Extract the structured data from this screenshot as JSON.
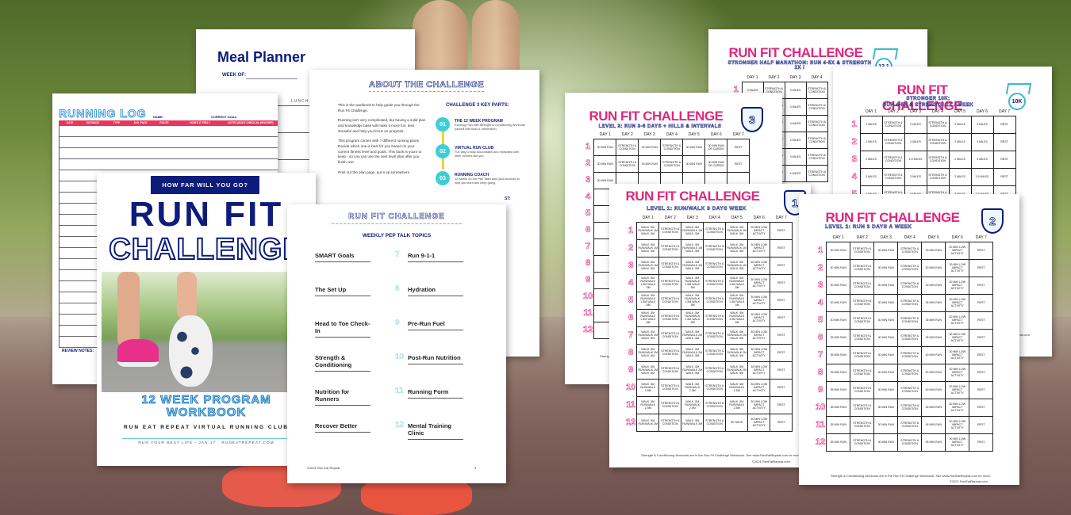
{
  "meal_planner": {
    "title": "Meal Planner",
    "week_of": "WEEK OF:",
    "lunch": "LUNCH"
  },
  "running_log": {
    "title": "RUNNING LOG",
    "name": "NAME:",
    "current_goal": "CURRENT GOAL:",
    "columns": [
      "DATE",
      "DISTANCE",
      "TYPE",
      "AVG. PACE",
      "ROUTE",
      "HOW'D IT FEEL?",
      "NOTES (BODY CHECK-IN, WEATHER)"
    ],
    "review": "REVIEW NOTES:",
    "accent": "#e8365f"
  },
  "cover": {
    "tag": "HOW FAR WILL YOU GO?",
    "title1": "RUN FIT",
    "title2": "CHALLENGE",
    "program": "12 WEEK PROGRAM",
    "workbook": "WORKBOOK",
    "club": "RUN EAT REPEAT VIRTUAL RUNNING CLUB",
    "footer": "RUN YOUR BEST LIFE · JAN 17 · RUNEATREPEAT.COM",
    "navy": "#0d1c7a",
    "cyan": "#3aa9e0"
  },
  "about": {
    "title": "ABOUT THE CHALLENGE",
    "paragraphs": [
      "This is the workbook to help guide you through the Run Fit Challenge.",
      "Running isn't very complicated, but having a solid plan and knowledge base will make it more fun, less stressful and help you focus on progress.",
      "This program comes with 7 different running plans. Decide which one is best for you based on your current fitness level and goals. This book is yours to keep - so you can use the next level plan after you finish one.",
      "Print out the plan page, put it up somewhere"
    ],
    "parts_title": "CHALLENGE 3 KEY PARTS:",
    "parts": [
      {
        "num": "01",
        "title": "THE 12 WEEK PROGRAM",
        "text": "Running Plan with Strength & Conditioning Workouts packed with tools & information."
      },
      {
        "num": "02",
        "title": "VIRTUAL RUN CLUB",
        "text": "Fun way to stay accountable and motivated with other runners like you."
      },
      {
        "num": "03",
        "title": "RUNNING COACH",
        "text": "12 weeks of Live Pep Talks and Q&A sessions to help you learn and keep going."
      }
    ],
    "partial": "ST:"
  },
  "pep": {
    "title": "RUN FIT CHALLENGE",
    "subtitle": "WEEKLY PEP TALK TOPICS",
    "left": [
      "SMART Goals",
      "The Set Up",
      "Head to Toe Check-In",
      "Strength & Conditioning",
      "Nutrition for Runners",
      "Recover Better"
    ],
    "right": [
      {
        "n": "7",
        "t": "Run 9-1-1"
      },
      {
        "n": "8",
        "t": "Hydration"
      },
      {
        "n": "9",
        "t": "Pre-Run Fuel"
      },
      {
        "n": "10",
        "t": "Post-Run Nutrition"
      },
      {
        "n": "11",
        "t": "Running Form"
      },
      {
        "n": "12",
        "t": "Mental Training Clinic"
      }
    ],
    "footer": "©2021 Run Eat Repeat",
    "page": "3"
  },
  "days": [
    "DAY 1",
    "DAY 2",
    "DAY 3",
    "DAY 4",
    "DAY 5",
    "DAY 6",
    "DAY 7"
  ],
  "half": {
    "title": "RUN FIT CHALLENGE",
    "subtitle": "STRONGER HALF MARATHON: RUN 4-5X & STRENGTH 2X /",
    "badge": "13.1",
    "rows": [
      [
        "3 MILES",
        "STRENGTH & CONDITION",
        "3 MILES",
        "STRENGTH & CONDITION"
      ],
      [
        "3 MILES",
        "STRENGTH & CONDITION",
        "3 MILES",
        "STRENGTH & CONDITION"
      ],
      [
        "3 MILES",
        "STRENGTH & CONDITION",
        "3 MILES",
        "STRENGTH & CONDITION"
      ],
      [
        "3 MILES",
        "STRENGTH & CONDITION",
        "4 MILES",
        "STRENGTH & CONDITION"
      ],
      [
        "3 MILES",
        "STRENGTH & CONDITION",
        "3 MILES",
        "STRENGTH & CONDITION"
      ],
      [
        "3 MILES",
        "STRENGTH & CONDITION",
        "4 MILES",
        "STRENGTH & CONDITION"
      ]
    ]
  },
  "tenk": {
    "title": "RUN FIT CHALLENGE",
    "subtitle1": "STRONGER 10K:",
    "subtitle2": "RUN 4-5X & STRENGTH 2X / WEEK",
    "badge": "10K",
    "rows": [
      [
        "2 MILES",
        "STRENGTH & CONDITION",
        "2 MILES",
        "STRENGTH & CONDITION",
        "2 MILES",
        "3 MILES",
        "REST"
      ],
      [
        "2 MILES",
        "STRENGTH & CONDITION",
        "2 MILES",
        "STRENGTH & CONDITION",
        "2 MILES",
        "3 MILES",
        "REST"
      ],
      [
        "2 MILES",
        "STRENGTH & CONDITION",
        "2.5 MILES",
        "STRENGTH & CONDITION",
        "2 MILES",
        "3 MILES",
        "REST"
      ],
      [
        "2 MILES",
        "STRENGTH & CONDITION",
        "3 MILES",
        "STRENGTH & CONDITION",
        "2 MILES",
        "3.5 MILES",
        "REST"
      ],
      [
        "2 MILES",
        "STRENGTH & CONDITION",
        "3 MILES",
        "STRENGTH & CONDITION",
        "3 MILES",
        "3.5 MILES",
        "REST"
      ]
    ],
    "footer": "©2021 RunEatRepeat.com"
  },
  "level3": {
    "title": "RUN FIT CHALLENGE",
    "subtitle": "LEVEL 3: RUN 3-6 DAYS + HILLS & INTERVALS",
    "badge": "3",
    "rows": [
      [
        "30 MIN RUN",
        "STRENGTH & CONDITION",
        "30 MIN RUN",
        "STRENGTH & CONDITION",
        "30 MIN RUN",
        "30 MIN RUN OR CARDIO",
        "REST"
      ],
      [
        "30 MIN RUN",
        "STRENGTH & CONDITION",
        "30 MIN RUN",
        "STRENGTH & CONDITION",
        "30 MIN RUN",
        "30 MIN RUN OR CARDIO",
        "REST"
      ],
      [
        "30 MIN RUN",
        "",
        "",
        "",
        "",
        "",
        ""
      ],
      [
        "",
        "",
        "",
        "",
        "",
        "",
        ""
      ],
      [
        "",
        "",
        "",
        "",
        "",
        "",
        ""
      ],
      [
        "",
        "",
        "",
        "",
        "",
        "",
        ""
      ],
      [
        "",
        "",
        "",
        "",
        "",
        "",
        ""
      ],
      [
        "",
        "",
        "",
        "",
        "",
        "",
        ""
      ],
      [
        "",
        "",
        "",
        "",
        "",
        "",
        ""
      ],
      [
        "",
        "",
        "",
        "",
        "",
        "",
        ""
      ],
      [
        "",
        "",
        "",
        "",
        "",
        "",
        ""
      ],
      [
        "",
        "",
        "",
        "",
        "",
        "",
        ""
      ]
    ],
    "footer": "Strength"
  },
  "level1": {
    "title": "RUN FIT CHALLENGE",
    "subtitle": "LEVEL 1: RUN/WALK 3 DAYS WEEK",
    "badge": "1",
    "rows": [
      [
        "WALK .5M RUN/WALK 1M WALK .5M",
        "STRENGTH & CONDITION",
        "WALK .5M RUN/WALK 1M WALK .5M",
        "STRENGTH & CONDITION",
        "WALK .5M RUN/WALK 1M WALK .5M",
        "30 MIN LOW IMPACT ACTIVITY",
        "REST"
      ],
      [
        "WALK .5M RUN/WALK 1M WALK .5M",
        "STRENGTH & CONDITION",
        "WALK .5M RUN/WALK 1M WALK .5M",
        "STRENGTH & CONDITION",
        "WALK .5M RUN/WALK 1M WALK .5M",
        "30 MIN LOW IMPACT ACTIVITY",
        "REST"
      ],
      [
        "WALK .5M RUN/WALK 1M WALK .5M",
        "STRENGTH & CONDITION",
        "WALK .5M RUN/WALK 1M WALK .5M",
        "STRENGTH & CONDITION",
        "WALK .5M RUN/WALK 1M WALK .5M",
        "30 MIN LOW IMPACT ACTIVITY",
        "REST"
      ],
      [
        "WALK .5M RUN/WALK 1.5M WALK .5M",
        "STRENGTH & CONDITION",
        "WALK .5M RUN/WALK 1.5M WALK .5M",
        "STRENGTH & CONDITION",
        "WALK .5M RUN/WALK 1.5M WALK .5M",
        "30 MIN LOW IMPACT ACTIVITY",
        "REST"
      ],
      [
        "WALK .5M RUN/WALK 1.5M WALK .5M",
        "STRENGTH & CONDITION",
        "WALK .5M RUN/WALK 1.5M WALK .5M",
        "STRENGTH & CONDITION",
        "WALK .5M RUN/WALK 1.5M WALK .5M",
        "30 MIN LOW IMPACT ACTIVITY",
        "REST"
      ],
      [
        "WALK .5M RUN/WALK 1.5M WALK .5M",
        "STRENGTH & CONDITION",
        "WALK .5M RUN/WALK 1.5M WALK .5M",
        "STRENGTH & CONDITION",
        "WALK .5M RUN/WALK 1.5M WALK .5M",
        "30 MIN LOW IMPACT ACTIVITY",
        "REST"
      ],
      [
        "WALK .5M RUN/WALK 2M WALK .5M",
        "STRENGTH & CONDITION",
        "WALK .5M RUN/WALK 2M WALK .5M",
        "STRENGTH & CONDITION",
        "WALK .5M RUN/WALK 2M WALK .5M",
        "30 MIN LOW IMPACT ACTIVITY",
        "REST"
      ],
      [
        "WALK .5M RUN/WALK 2M WALK .5M",
        "STRENGTH & CONDITION",
        "WALK .5M RUN/WALK 2M WALK .5M",
        "STRENGTH & CONDITION",
        "WALK .5M RUN/WALK 2M WALK .5M",
        "30 MIN LOW IMPACT ACTIVITY",
        "REST"
      ],
      [
        "WALK .5M RUN/WALK 2M WALK .5M",
        "STRENGTH & CONDITION",
        "WALK .5M RUN/WALK 2M WALK .5M",
        "STRENGTH & CONDITION",
        "WALK .5M RUN/WALK 2M WALK .5M",
        "30 MIN LOW IMPACT ACTIVITY",
        "REST"
      ],
      [
        "WALK .5M RUN/WALK 2.5M",
        "STRENGTH & CONDITION",
        "WALK .5M RUN/WALK 2.5M",
        "STRENGTH & CONDITION",
        "WALK .5M RUN/WALK 2.5M",
        "30 MIN LOW IMPACT ACTIVITY",
        "REST"
      ],
      [
        "WALK .5M RUN/WALK 2.5M",
        "STRENGTH & CONDITION",
        "WALK .5M RUN/WALK 2.5M",
        "STRENGTH & CONDITION",
        "WALK .5M RUN/WALK 2.5M",
        "30 MIN LOW IMPACT ACTIVITY",
        "REST"
      ],
      [
        "WALK .5M RUN/WALK 3M",
        "STRENGTH & CONDITION",
        "WALK .5M RUN/WALK 3M",
        "STRENGTH & CONDITION",
        "5K RACE",
        "30 MIN LOW IMPACT ACTIVITY",
        "REST"
      ]
    ],
    "footer": "Strength & Conditioning Workouts are in the Run Fit Challenge Workbook. See www.RunEatRepeat.com for more.",
    "copyright": "©2021 RunEatRepeat.com"
  },
  "level2": {
    "title": "RUN FIT CHALLENGE",
    "subtitle": "LEVEL 2: RUN 3 DAYS A WEEK",
    "badge": "2",
    "rows": [
      [
        "30 MIN RUN",
        "STRENGTH & CONDITION",
        "30 MIN RUN",
        "STRENGTH & CONDITION",
        "30 MIN RUN",
        "30 MIN LOW IMPACT ACTIVITY",
        "REST"
      ],
      [
        "30 MIN RUN",
        "STRENGTH & CONDITION",
        "30 MIN RUN",
        "STRENGTH & CONDITION",
        "30 MIN RUN",
        "30 MIN LOW IMPACT ACTIVITY",
        "REST"
      ],
      [
        "30 MIN RUN",
        "STRENGTH & CONDITION",
        "30 MIN RUN",
        "STRENGTH & CONDITION",
        "30 MIN RUN",
        "30 MIN LOW IMPACT ACTIVITY",
        "REST"
      ],
      [
        "30 MIN RUN",
        "STRENGTH & CONDITION",
        "30 MIN RUN",
        "STRENGTH & CONDITION",
        "35 MIN RUN",
        "30 MIN LOW IMPACT ACTIVITY",
        "REST"
      ],
      [
        "30 MIN RUN",
        "STRENGTH & CONDITION",
        "30 MIN RUN",
        "STRENGTH & CONDITION",
        "35 MIN RUN",
        "30 MIN LOW IMPACT ACTIVITY",
        "REST"
      ],
      [
        "35 MIN RUN",
        "STRENGTH & CONDITION",
        "30 MIN RUN",
        "STRENGTH & CONDITION",
        "35 MIN RUN",
        "30 MIN LOW IMPACT ACTIVITY",
        "REST"
      ],
      [
        "35 MIN RUN",
        "STRENGTH & CONDITION",
        "30 MIN RUN",
        "STRENGTH & CONDITION",
        "40 MIN RUN",
        "30 MIN LOW IMPACT ACTIVITY",
        "REST"
      ],
      [
        "35 MIN RUN",
        "STRENGTH & CONDITION",
        "30 MIN RUN",
        "STRENGTH & CONDITION",
        "40 MIN RUN",
        "30 MIN LOW IMPACT ACTIVITY",
        "REST"
      ],
      [
        "35 MIN RUN",
        "STRENGTH & CONDITION",
        "30 MIN RUN",
        "STRENGTH & CONDITION",
        "40 MIN RUN",
        "30 MIN LOW IMPACT ACTIVITY",
        "REST"
      ],
      [
        "35 MIN RUN",
        "STRENGTH & CONDITION",
        "30 MIN RUN",
        "STRENGTH & CONDITION",
        "45 MIN RUN",
        "30 MIN LOW IMPACT ACTIVITY",
        "REST"
      ],
      [
        "35 MIN RUN",
        "STRENGTH & CONDITION",
        "30 MIN RUN",
        "STRENGTH & CONDITION",
        "45 MIN RUN",
        "30 MIN LOW IMPACT ACTIVITY",
        "REST"
      ],
      [
        "35 MIN RUN",
        "STRENGTH & CONDITION",
        "30 MIN RUN",
        "STRENGTH & CONDITION",
        "45 MIN RUN",
        "30 MIN LOW IMPACT ACTIVITY",
        "REST"
      ]
    ],
    "footer": "Strength & Conditioning Workouts are in the Run Fit Challenge Workbook. See www.RunEatRepeat.com for more.",
    "copyright": "©2021 RunEatRepeat.com"
  }
}
